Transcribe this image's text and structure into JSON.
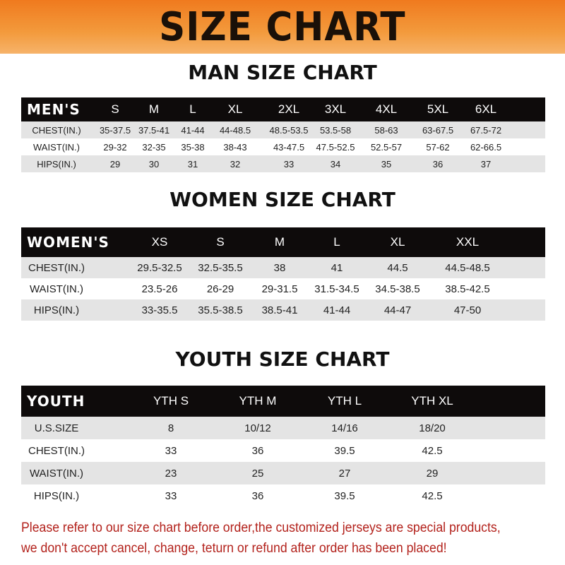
{
  "header": {
    "title": "SIZE CHART"
  },
  "men": {
    "title": "MAN SIZE CHART",
    "label": "MEN'S",
    "sizes": [
      "S",
      "M",
      "L",
      "XL",
      "2XL",
      "3XL",
      "4XL",
      "5XL",
      "6XL"
    ],
    "rows": [
      {
        "label": "CHEST(IN.)",
        "values": [
          "35-37.5",
          "37.5-41",
          "41-44",
          "44-48.5",
          "48.5-53.5",
          "53.5-58",
          "58-63",
          "63-67.5",
          "67.5-72"
        ]
      },
      {
        "label": "WAIST(IN.)",
        "values": [
          "29-32",
          "32-35",
          "35-38",
          "38-43",
          "43-47.5",
          "47.5-52.5",
          "52.5-57",
          "57-62",
          "62-66.5"
        ]
      },
      {
        "label": "HIPS(IN.)",
        "values": [
          "29",
          "30",
          "31",
          "32",
          "33",
          "34",
          "35",
          "36",
          "37"
        ]
      }
    ]
  },
  "women": {
    "title": "WOMEN SIZE CHART",
    "label": "WOMEN'S",
    "sizes": [
      "XS",
      "S",
      "M",
      "L",
      "XL",
      "XXL"
    ],
    "rows": [
      {
        "label": "CHEST(IN.)",
        "values": [
          "29.5-32.5",
          "32.5-35.5",
          "38",
          "41",
          "44.5",
          "44.5-48.5"
        ]
      },
      {
        "label": "WAIST(IN.)",
        "values": [
          "23.5-26",
          "26-29",
          "29-31.5",
          "31.5-34.5",
          "34.5-38.5",
          "38.5-42.5"
        ]
      },
      {
        "label": "HIPS(IN.)",
        "values": [
          "33-35.5",
          "35.5-38.5",
          "38.5-41",
          "41-44",
          "44-47",
          "47-50"
        ]
      }
    ]
  },
  "youth": {
    "title": "YOUTH SIZE CHART",
    "label": "YOUTH",
    "sizes": [
      "YTH S",
      "YTH M",
      "YTH L",
      "YTH XL"
    ],
    "rows": [
      {
        "label": "U.S.SIZE",
        "values": [
          "8",
          "10/12",
          "14/16",
          "18/20"
        ]
      },
      {
        "label": "CHEST(IN.)",
        "values": [
          "33",
          "36",
          "39.5",
          "42.5"
        ]
      },
      {
        "label": "WAIST(IN.)",
        "values": [
          "23",
          "25",
          "27",
          "29"
        ]
      },
      {
        "label": "HIPS(IN.)",
        "values": [
          "33",
          "36",
          "39.5",
          "42.5"
        ]
      }
    ]
  },
  "notice": {
    "line1": "Please refer to our size chart before order,the customized jerseys are special products,",
    "line2": "we don't accept cancel, change, teturn or refund after order has been placed!"
  }
}
